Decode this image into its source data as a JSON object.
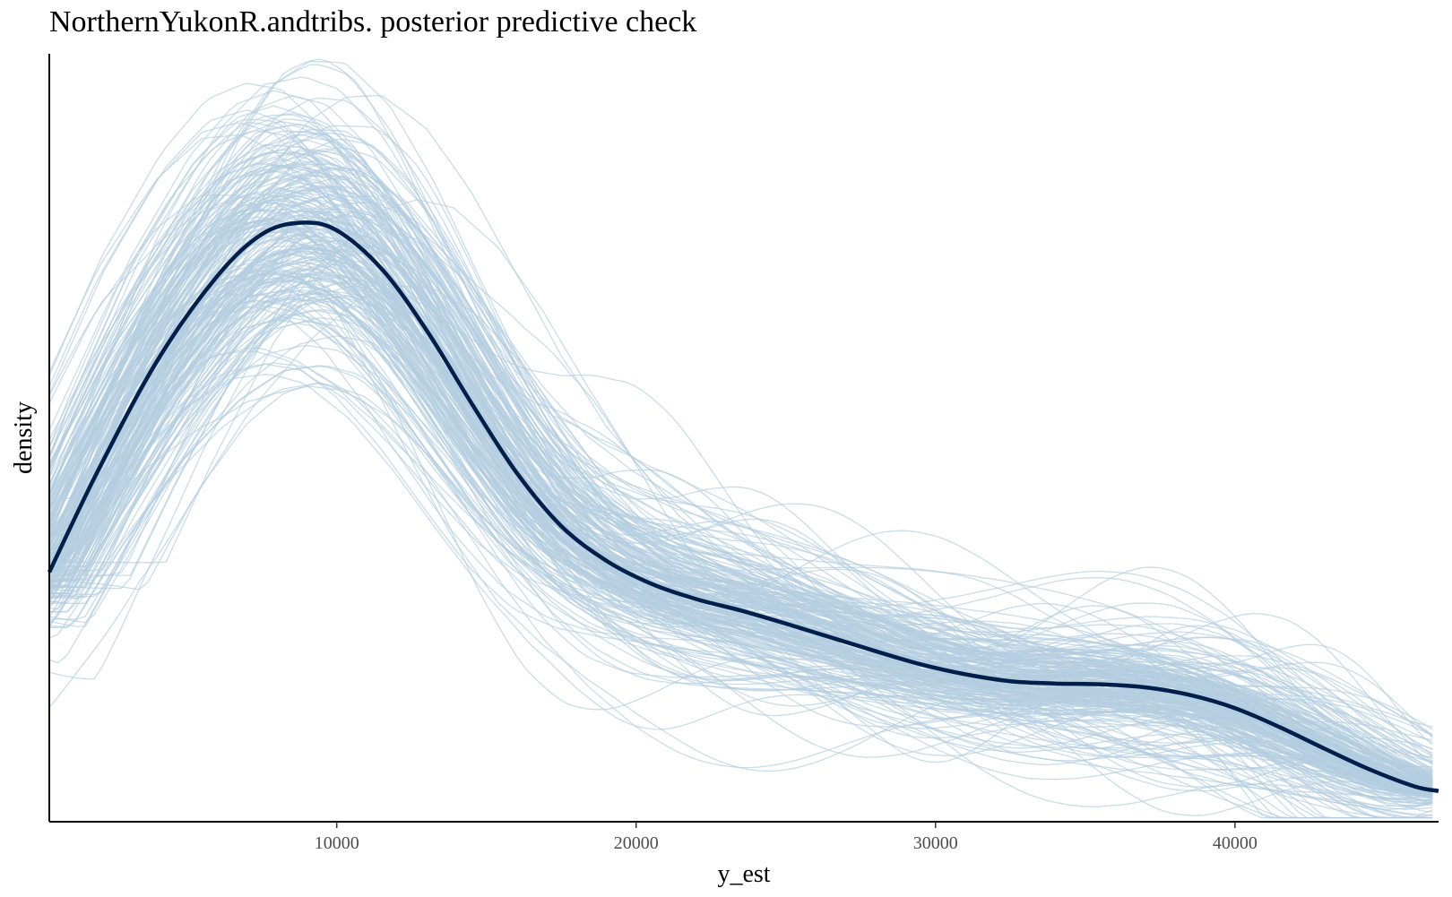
{
  "chart_data": {
    "type": "line",
    "title": "NorthernYukonR.andtribs. posterior predictive check",
    "xlabel": "y_est",
    "ylabel": "density",
    "xlim": [
      400,
      46800
    ],
    "ylim": [
      0,
      1
    ],
    "x_ticks": [
      10000,
      20000,
      30000,
      40000
    ],
    "x_tick_labels": [
      "10000",
      "20000",
      "30000",
      "40000"
    ],
    "y_ticks_shown": false,
    "grid": false,
    "colors": {
      "y": "#011f4b",
      "yrep": "#b3cde0"
    },
    "yrep_draws": 250,
    "series": [
      {
        "x": [
          400,
          2000,
          4000,
          6000,
          7500,
          8800,
          10000,
          11500,
          13000,
          14500,
          16000,
          17500,
          19000,
          20500,
          22000,
          23500,
          25000,
          26500,
          28000,
          29500,
          31000,
          32500,
          34000,
          35500,
          37000,
          38500,
          40000,
          41500,
          43000,
          44500,
          46000,
          46800
        ],
        "values": [
          0.325,
          0.455,
          0.6,
          0.71,
          0.765,
          0.78,
          0.77,
          0.72,
          0.64,
          0.545,
          0.455,
          0.385,
          0.34,
          0.31,
          0.29,
          0.275,
          0.258,
          0.24,
          0.222,
          0.205,
          0.192,
          0.183,
          0.18,
          0.179,
          0.175,
          0.165,
          0.148,
          0.123,
          0.095,
          0.068,
          0.046,
          0.04
        ]
      }
    ]
  }
}
